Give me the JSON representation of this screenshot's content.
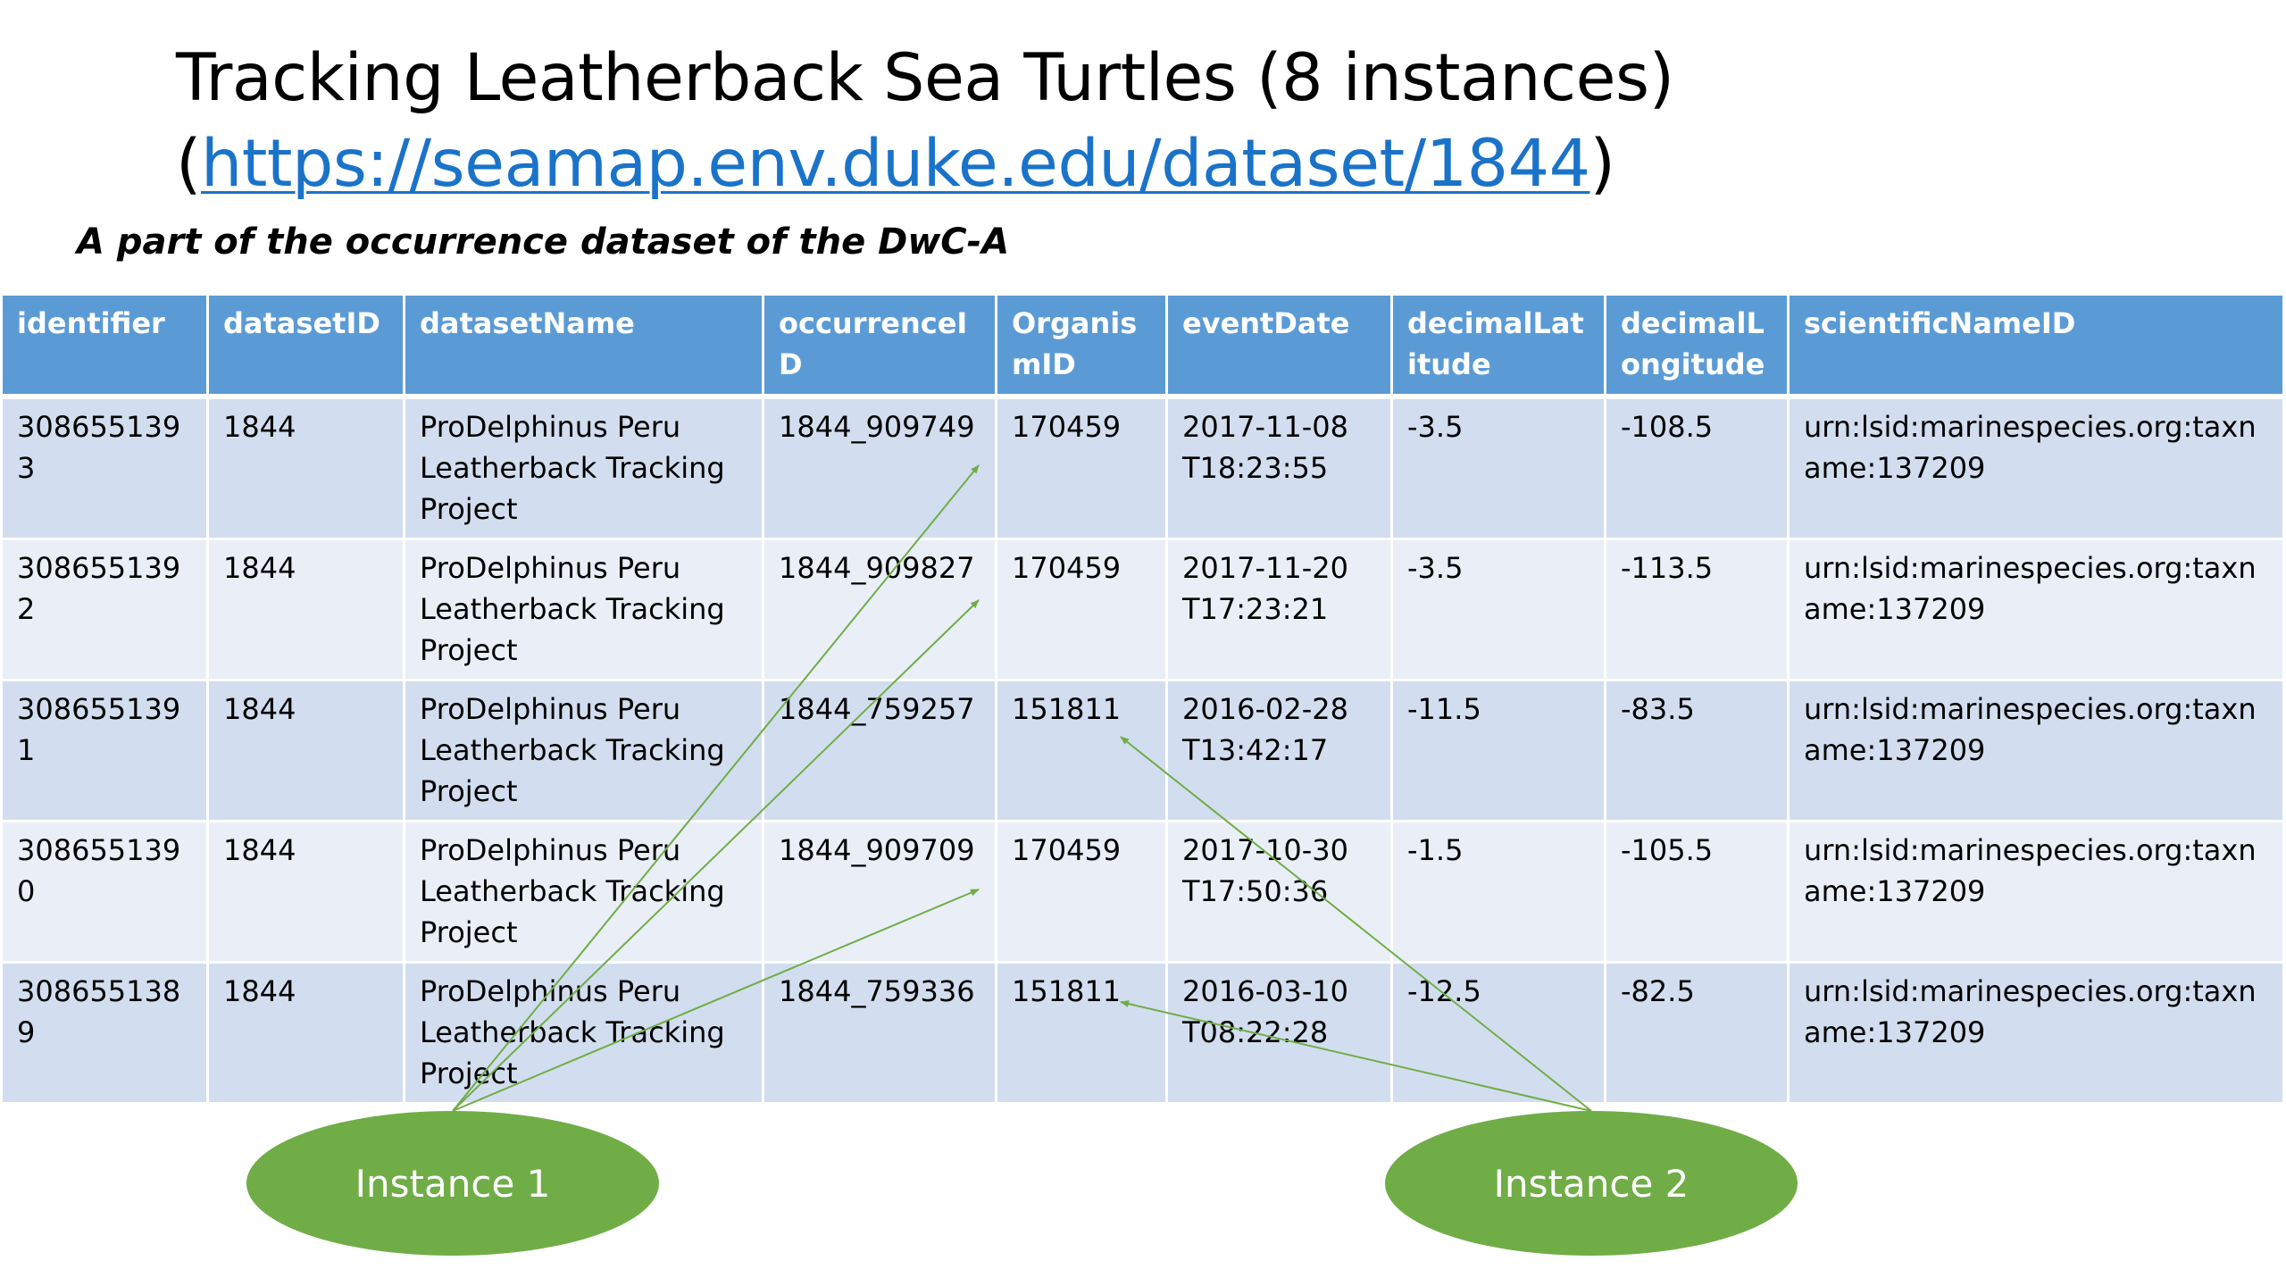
{
  "title": {
    "line1": "Tracking Leatherback Sea Turtles (8 instances)",
    "open_paren": "(",
    "url": "https://seamap.env.duke.edu/dataset/1844",
    "close_paren": ")"
  },
  "subtitle": "A part of the occurrence dataset of the DwC-A",
  "table": {
    "headers": [
      "identifier",
      "datasetID",
      "datasetName",
      "occurrenceID",
      "OrganismID",
      "eventDate",
      "decimalLatitude",
      "decimalLongitude",
      "scientificNameID"
    ],
    "rows": [
      [
        "3086551393",
        "1844",
        "ProDelphinus Peru Leatherback Tracking Project",
        "1844_909749",
        "170459",
        "2017-11-08 T18:23:55",
        "-3.5",
        "-108.5",
        "urn:lsid:marinespecies.org:taxname:137209"
      ],
      [
        "3086551392",
        "1844",
        "ProDelphinus Peru Leatherback Tracking Project",
        "1844_909827",
        "170459",
        "2017-11-20 T17:23:21",
        "-3.5",
        "-113.5",
        "urn:lsid:marinespecies.org:taxname:137209"
      ],
      [
        "3086551391",
        "1844",
        "ProDelphinus Peru Leatherback Tracking Project",
        "1844_759257",
        "151811",
        "2016-02-28 T13:42:17",
        "-11.5",
        "-83.5",
        "urn:lsid:marinespecies.org:taxname:137209"
      ],
      [
        "3086551390",
        "1844",
        "ProDelphinus Peru Leatherback Tracking Project",
        "1844_909709",
        "170459",
        "2017-10-30 T17:50:36",
        "-1.5",
        "-105.5",
        "urn:lsid:marinespecies.org:taxname:137209"
      ],
      [
        "3086551389",
        "1844",
        "ProDelphinus Peru Leatherback Tracking Project",
        "1844_759336",
        "151811",
        "2016-03-10 T08:22:28",
        "-12.5",
        "-82.5",
        "urn:lsid:marinespecies.org:taxname:137209"
      ]
    ]
  },
  "instances": [
    "Instance 1",
    "Instance 2"
  ],
  "colors": {
    "header_bg": "#5b9bd5",
    "row_odd_bg": "#d2deef",
    "row_even_bg": "#eaeff7",
    "instance_fill": "#70ad47",
    "link": "#1a73c9"
  }
}
